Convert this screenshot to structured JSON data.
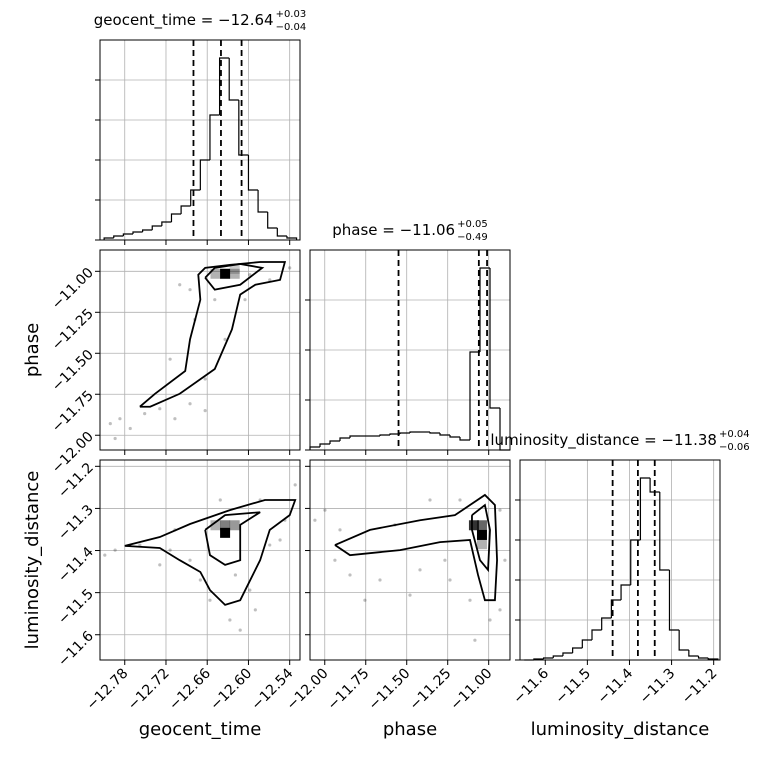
{
  "chart_data": {
    "type": "corner",
    "grid": true,
    "color": "#000000",
    "parameters": [
      {
        "label": "geocent_time",
        "title": "geocent_time = −12.64",
        "title_upper": "+0.03",
        "title_lower": "−0.04",
        "lim": [
          -12.816,
          -12.525
        ],
        "ticks": [
          {
            "value": -12.78,
            "label": "−12.78"
          },
          {
            "value": -12.72,
            "label": "−12.72"
          },
          {
            "value": -12.66,
            "label": "−12.66"
          },
          {
            "value": -12.6,
            "label": "−12.60"
          },
          {
            "value": -12.54,
            "label": "−12.54"
          }
        ],
        "quantiles": [
          -12.68,
          -12.64,
          -12.61
        ],
        "bins": [
          -12.81,
          -12.796,
          -12.782,
          -12.768,
          -12.754,
          -12.74,
          -12.726,
          -12.712,
          -12.698,
          -12.684,
          -12.67,
          -12.656,
          -12.642,
          -12.628,
          -12.614,
          -12.6,
          -12.586,
          -12.572,
          -12.558,
          -12.544,
          -12.53
        ],
        "counts": [
          10,
          20,
          30,
          40,
          50,
          70,
          90,
          130,
          170,
          250,
          400,
          625,
          910,
          700,
          425,
          250,
          140,
          60,
          20,
          10
        ],
        "hist_ylim": [
          0,
          1000
        ],
        "hist_yticks": [
          0,
          200,
          400,
          600,
          800
        ]
      },
      {
        "label": "phase",
        "title": "phase = −11.06",
        "title_upper": "+0.05",
        "title_lower": "−0.49",
        "lim": [
          -12.09,
          -10.87
        ],
        "ticks": [
          {
            "value": -12.0,
            "label": "−12.00"
          },
          {
            "value": -11.75,
            "label": "−11.75"
          },
          {
            "value": -11.5,
            "label": "−11.50"
          },
          {
            "value": -11.25,
            "label": "−11.25"
          },
          {
            "value": -11.0,
            "label": "−11.00"
          }
        ],
        "quantiles": [
          -11.55,
          -11.06,
          -11.01
        ],
        "bins": [
          -12.09,
          -12.029,
          -11.968,
          -11.907,
          -11.846,
          -11.785,
          -11.724,
          -11.663,
          -11.602,
          -11.541,
          -11.48,
          -11.419,
          -11.358,
          -11.297,
          -11.236,
          -11.175,
          -11.114,
          -11.053,
          -10.992,
          -10.931,
          -10.87
        ],
        "counts": [
          12,
          24,
          36,
          48,
          56,
          56,
          56,
          60,
          64,
          68,
          72,
          72,
          68,
          60,
          52,
          40,
          392,
          728,
          168,
          0
        ],
        "hist_ylim": [
          0,
          800
        ],
        "hist_yticks": [
          0,
          200,
          400,
          600
        ]
      },
      {
        "label": "luminosity_distance",
        "title": "luminosity_distance = −11.38",
        "title_upper": "+0.04",
        "title_lower": "−0.06",
        "lim": [
          -11.66,
          -11.185
        ],
        "ticks": [
          {
            "value": -11.6,
            "label": "−11.6"
          },
          {
            "value": -11.5,
            "label": "−11.5"
          },
          {
            "value": -11.4,
            "label": "−11.4"
          },
          {
            "value": -11.3,
            "label": "−11.3"
          },
          {
            "value": -11.2,
            "label": "−11.2"
          }
        ],
        "quantiles": [
          -11.44,
          -11.38,
          -11.34
        ],
        "bins": [
          -11.65,
          -11.627,
          -11.604,
          -11.581,
          -11.558,
          -11.535,
          -11.512,
          -11.489,
          -11.466,
          -11.443,
          -11.42,
          -11.397,
          -11.374,
          -11.351,
          -11.328,
          -11.305,
          -11.282,
          -11.259,
          -11.236,
          -11.213,
          -11.19
        ],
        "counts": [
          0,
          5,
          10,
          20,
          35,
          60,
          100,
          150,
          210,
          300,
          375,
          600,
          910,
          840,
          450,
          150,
          50,
          20,
          10,
          5
        ],
        "hist_ylim": [
          0,
          1000
        ],
        "hist_yticks": [
          0,
          200,
          400,
          600,
          800
        ]
      }
    ],
    "pairs": [
      {
        "points": {
          "x": [
            -12.801,
            -12.787,
            -12.772,
            -12.751,
            -12.729,
            -12.707,
            -12.685,
            -12.663,
            -12.714,
            -12.678,
            -12.649,
            -12.685,
            -12.605,
            -12.569,
            -12.54,
            -12.7,
            -12.634,
            -12.663,
            -12.794,
            -12.598
          ],
          "y": [
            -11.929,
            -11.899,
            -11.959,
            -11.868,
            -11.838,
            -11.899,
            -11.808,
            -11.85,
            -11.536,
            -11.294,
            -11.173,
            -11.112,
            -11.173,
            -11.052,
            -10.979,
            -11.082,
            -11.415,
            -11.657,
            -12.02,
            -11.021
          ]
        },
        "density": {
          "x": [
            -12.634,
            -12.62,
            -12.648,
            -12.62
          ],
          "y": [
            -11.015,
            -11.015,
            -11.015,
            -10.985
          ],
          "values": [
            1,
            0.3,
            0.3,
            0.2
          ]
        },
        "contours": [
          {
            "x": [
              -12.758,
              -12.736,
              -12.692,
              -12.685,
              -12.67,
              -12.673,
              -12.663,
              -12.627,
              -12.583,
              -12.547,
              -12.554,
              -12.59,
              -12.612,
              -12.624,
              -12.649,
              -12.7,
              -12.743,
              -12.758
            ],
            "y": [
              -11.826,
              -11.747,
              -11.608,
              -11.415,
              -11.173,
              -11.021,
              -10.979,
              -10.961,
              -10.943,
              -10.943,
              -11.052,
              -11.082,
              -11.142,
              -11.354,
              -11.596,
              -11.747,
              -11.826,
              -11.826
            ]
          },
          {
            "x": [
              -12.663,
              -12.649,
              -12.612,
              -12.58,
              -12.612,
              -12.649,
              -12.663
            ],
            "y": [
              -11.039,
              -10.979,
              -10.955,
              -10.979,
              -11.082,
              -11.112,
              -11.039
            ]
          }
        ]
      },
      {
        "points": {
          "x": [
            -12.809,
            -12.794,
            -12.758,
            -12.714,
            -12.685,
            -12.656,
            -12.627,
            -12.598,
            -12.569,
            -12.547,
            -12.532,
            -12.612,
            -12.67,
            -12.729,
            -12.554,
            -12.583,
            -12.641,
            -12.707,
            -12.619,
            -12.59
          ],
          "y": [
            -11.411,
            -11.399,
            -11.387,
            -11.399,
            -11.423,
            -11.518,
            -11.565,
            -11.494,
            -11.387,
            -11.328,
            -11.244,
            -11.589,
            -11.47,
            -11.434,
            -11.375,
            -11.28,
            -11.28,
            -11.351,
            -11.458,
            -11.541
          ]
        },
        "density": {
          "x": [
            -12.634,
            -12.62,
            -12.648,
            -12.634
          ],
          "y": [
            -11.358,
            -11.34,
            -11.34,
            -11.34
          ],
          "values": [
            1,
            0.4,
            0.3,
            0.5
          ]
        },
        "contours": [
          {
            "x": [
              -12.78,
              -12.729,
              -12.685,
              -12.627,
              -12.576,
              -12.532,
              -12.54,
              -12.569,
              -12.583,
              -12.612,
              -12.634,
              -12.656,
              -12.67,
              -12.7,
              -12.729,
              -12.78
            ],
            "y": [
              -11.389,
              -11.368,
              -11.337,
              -11.304,
              -11.28,
              -11.28,
              -11.316,
              -11.351,
              -11.423,
              -11.518,
              -11.529,
              -11.494,
              -11.451,
              -11.423,
              -11.394,
              -11.389
            ]
          },
          {
            "x": [
              -12.663,
              -12.634,
              -12.583,
              -12.612,
              -12.612,
              -12.634,
              -12.656,
              -12.663
            ],
            "y": [
              -11.351,
              -11.316,
              -11.309,
              -11.339,
              -11.423,
              -11.434,
              -11.411,
              -11.351
            ]
          }
        ]
      },
      {
        "points": {
          "x": [
            -12.06,
            -11.999,
            -11.938,
            -11.846,
            -11.663,
            -11.419,
            -11.236,
            -11.114,
            -10.992,
            -10.931,
            -10.901,
            -11.175,
            -11.358,
            -11.572,
            -11.907,
            -11.084,
            -11.755,
            -11.48,
            -10.931,
            -11.267
          ],
          "y": [
            -11.328,
            -11.304,
            -11.423,
            -11.458,
            -11.47,
            -11.446,
            -11.47,
            -11.518,
            -11.565,
            -11.541,
            -11.423,
            -11.28,
            -11.28,
            -11.339,
            -11.351,
            -11.613,
            -11.518,
            -11.506,
            -11.304,
            -11.423
          ]
        },
        "density": {
          "x": [
            -11.041,
            -11.041,
            -11.09,
            -11.041
          ],
          "y": [
            -11.363,
            -11.34,
            -11.34,
            -11.385
          ],
          "values": [
            1,
            0.6,
            0.8,
            0.3
          ]
        },
        "contours": [
          {
            "x": [
              -11.938,
              -11.724,
              -11.419,
              -11.206,
              -11.114,
              -11.023,
              -10.962,
              -10.949,
              -10.962,
              -11.023,
              -11.065,
              -11.114,
              -11.297,
              -11.541,
              -11.846,
              -11.938
            ],
            "y": [
              -11.387,
              -11.351,
              -11.328,
              -11.316,
              -11.292,
              -11.268,
              -11.292,
              -11.423,
              -11.518,
              -11.518,
              -11.458,
              -11.375,
              -11.38,
              -11.399,
              -11.411,
              -11.387
            ]
          },
          {
            "x": [
              -11.102,
              -11.023,
              -10.992,
              -11.004,
              -11.053,
              -11.102,
              -11.102
            ],
            "y": [
              -11.316,
              -11.292,
              -11.351,
              -11.446,
              -11.423,
              -11.351,
              -11.316
            ]
          }
        ]
      }
    ]
  }
}
